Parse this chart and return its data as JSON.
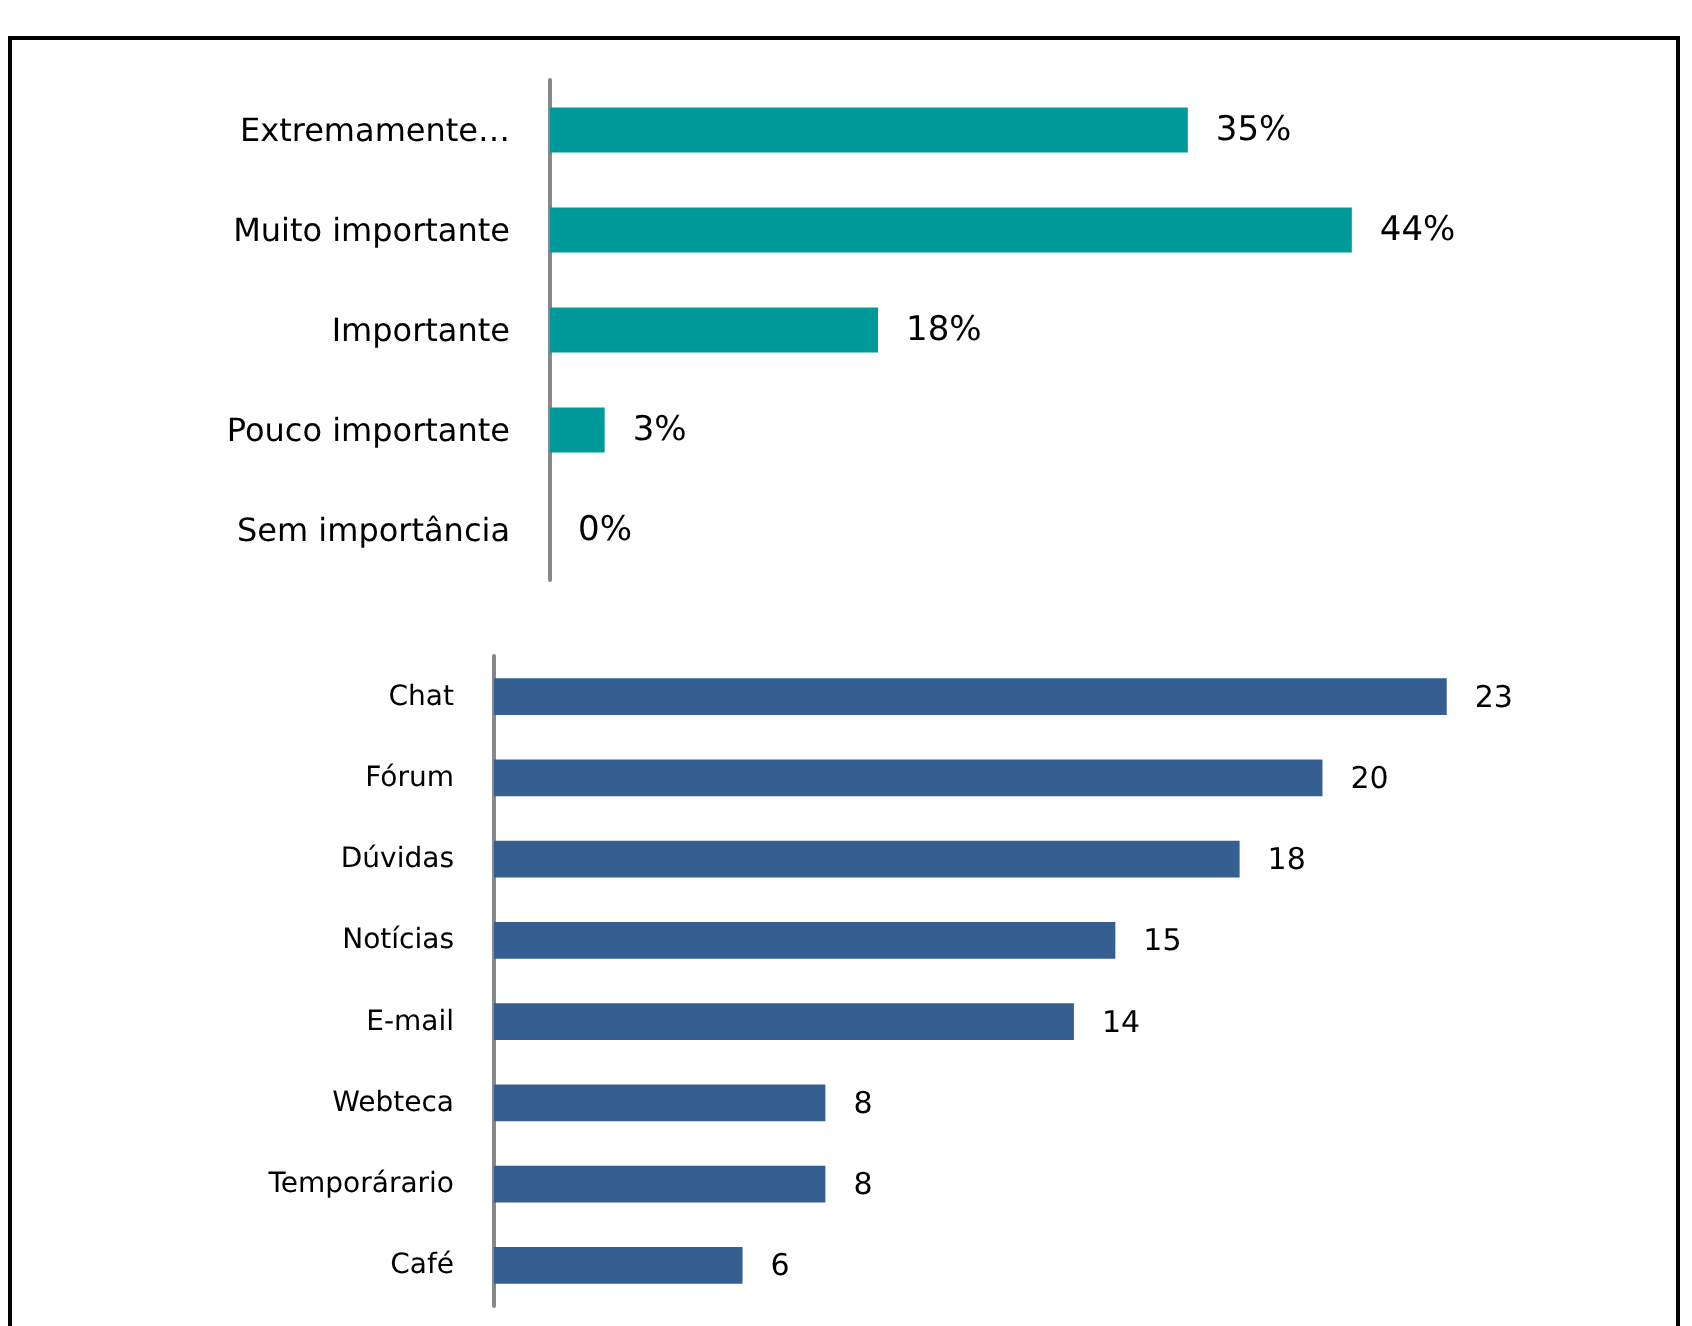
{
  "chart_data": [
    {
      "type": "bar",
      "orientation": "horizontal",
      "categories": [
        "Extremamente…",
        "Muito importante",
        "Importante",
        "Pouco importante",
        "Sem importância"
      ],
      "values": [
        35,
        44,
        18,
        3,
        0
      ],
      "color": "#009999",
      "value_labels": [
        "35%",
        "44%",
        "18%",
        "3%",
        "0%"
      ]
    },
    {
      "type": "bar",
      "orientation": "horizontal",
      "categories": [
        "Chat",
        "Fórum",
        "Dúvidas",
        "Notícias",
        "E-mail",
        "Webteca",
        "Temporárario",
        "Café"
      ],
      "values": [
        23,
        20,
        18,
        15,
        14,
        8,
        8,
        6
      ],
      "color": "#355e91",
      "data_labels": true
    }
  ]
}
